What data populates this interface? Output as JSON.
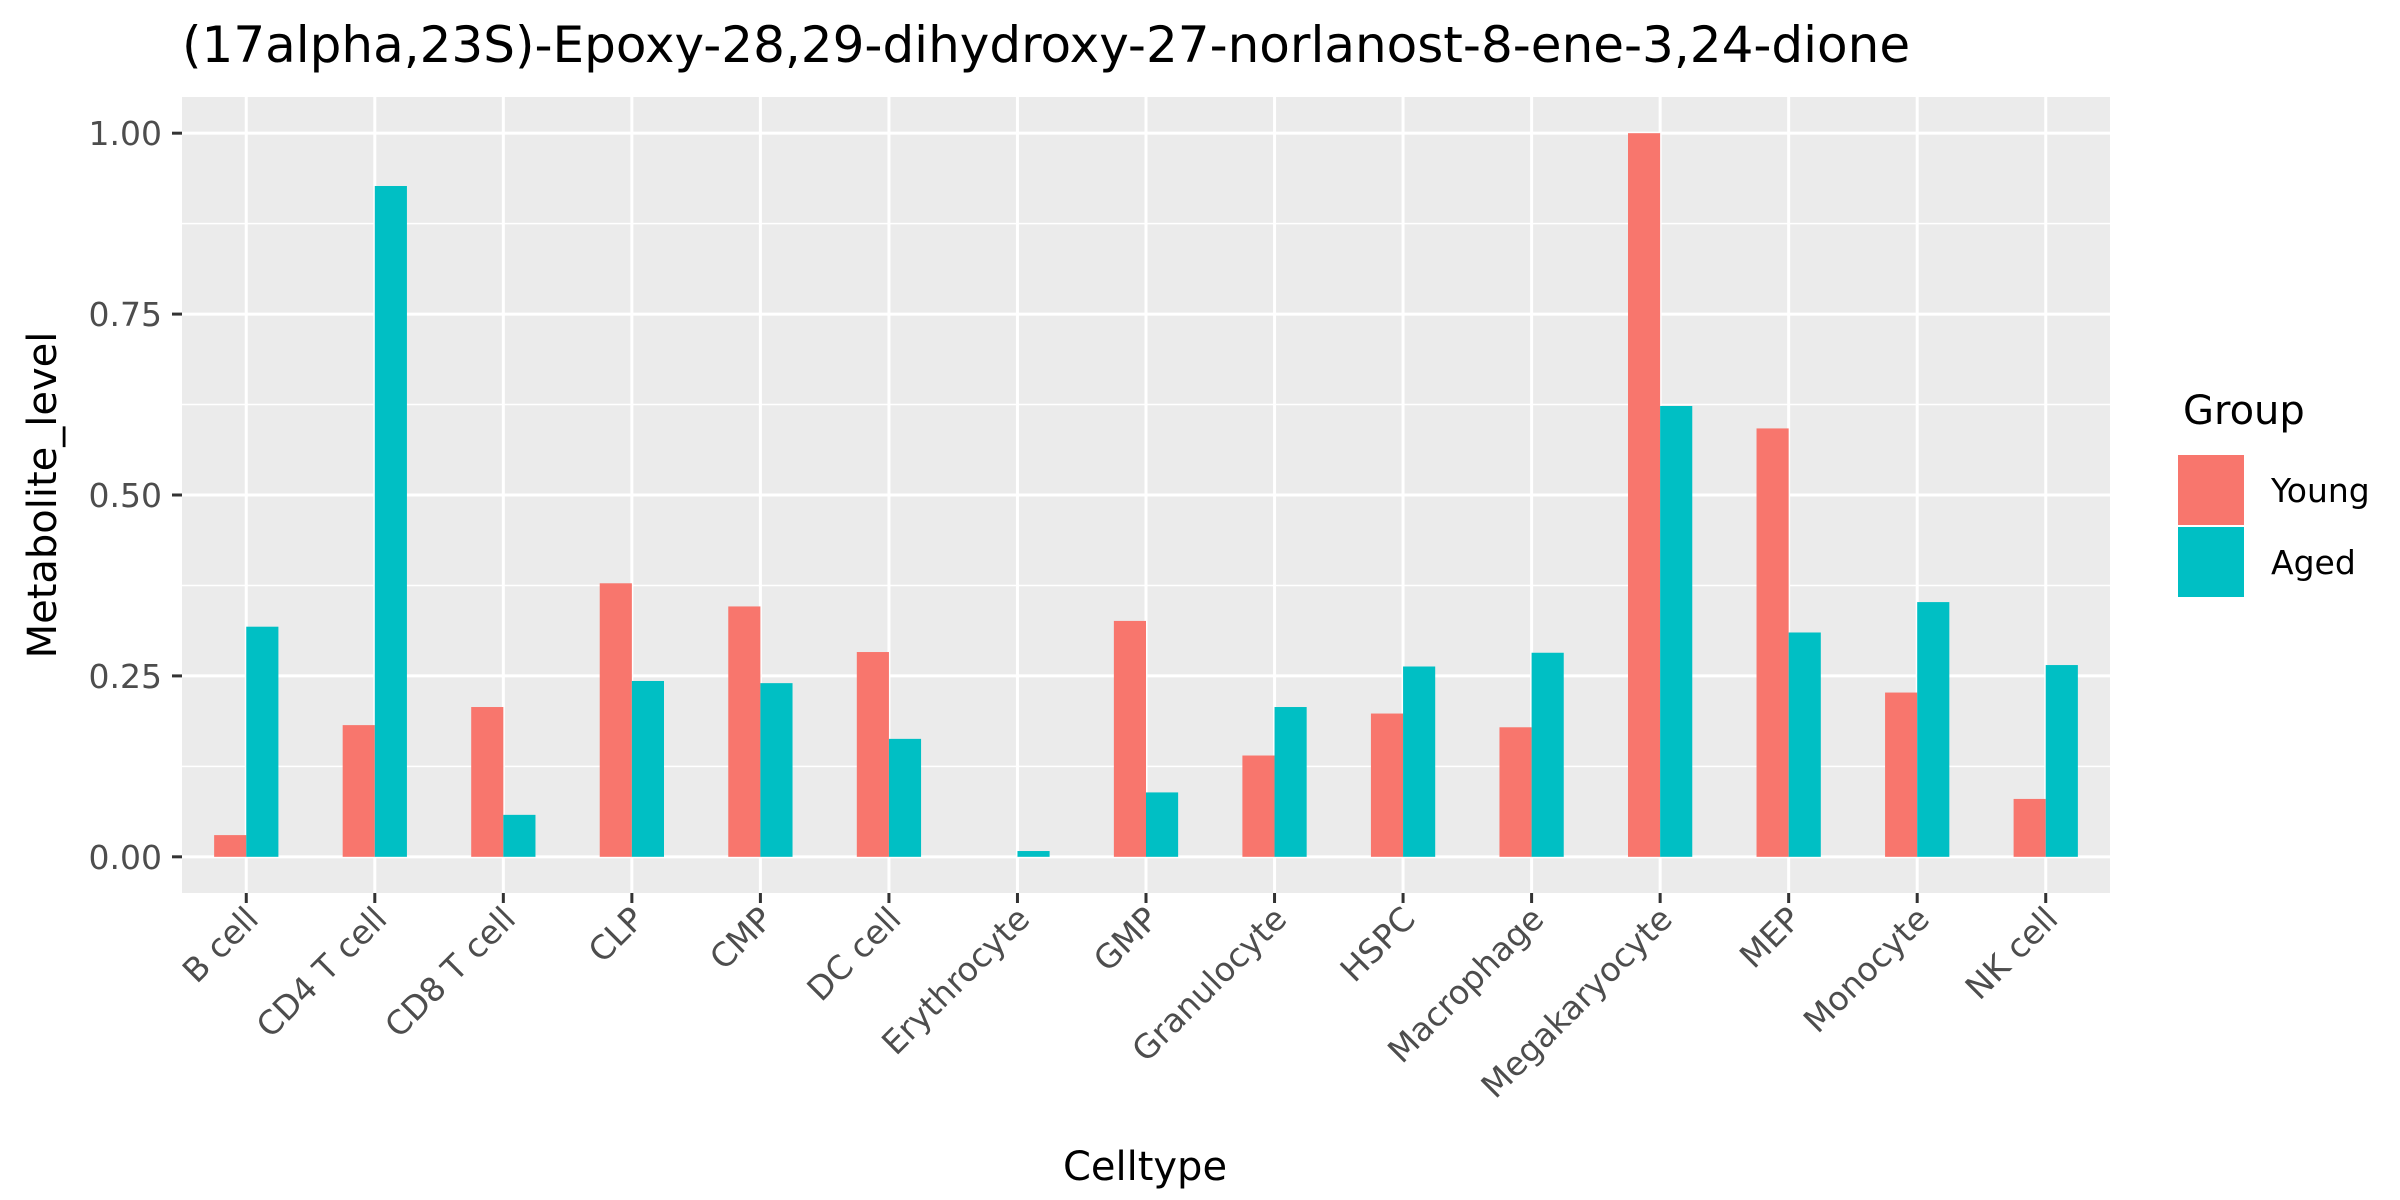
{
  "chart_data": {
    "type": "bar",
    "title": "(17alpha,23S)-Epoxy-28,29-dihydroxy-27-norlanost-8-ene-3,24-dione",
    "xlabel": "Celltype",
    "ylabel": "Metabolite_level",
    "ylim": [
      -0.05,
      1.05
    ],
    "yticks": [
      0,
      0.25,
      0.5,
      0.75,
      1
    ],
    "ytick_labels": [
      "0.00",
      "0.25",
      "0.50",
      "0.75",
      "1.00"
    ],
    "grid": true,
    "legend": {
      "title": "Group",
      "position": "right"
    },
    "categories": [
      "B cell",
      "CD4 T cell",
      "CD8 T cell",
      "CLP",
      "CMP",
      "DC cell",
      "Erythrocyte",
      "GMP",
      "Granulocyte",
      "HSPC",
      "Macrophage",
      "Megakaryocyte",
      "MEP",
      "Monocyte",
      "NK cell"
    ],
    "series": [
      {
        "name": "Young",
        "color": "#F8766D",
        "values": [
          0.03,
          0.182,
          0.207,
          0.378,
          0.346,
          0.283,
          0.0,
          0.326,
          0.14,
          0.198,
          0.179,
          1.0,
          0.592,
          0.227,
          0.08
        ]
      },
      {
        "name": "Aged",
        "color": "#00BFC4",
        "values": [
          0.318,
          0.927,
          0.058,
          0.243,
          0.24,
          0.163,
          0.008,
          0.089,
          0.207,
          0.263,
          0.282,
          0.623,
          0.31,
          0.352,
          0.265
        ]
      }
    ]
  }
}
